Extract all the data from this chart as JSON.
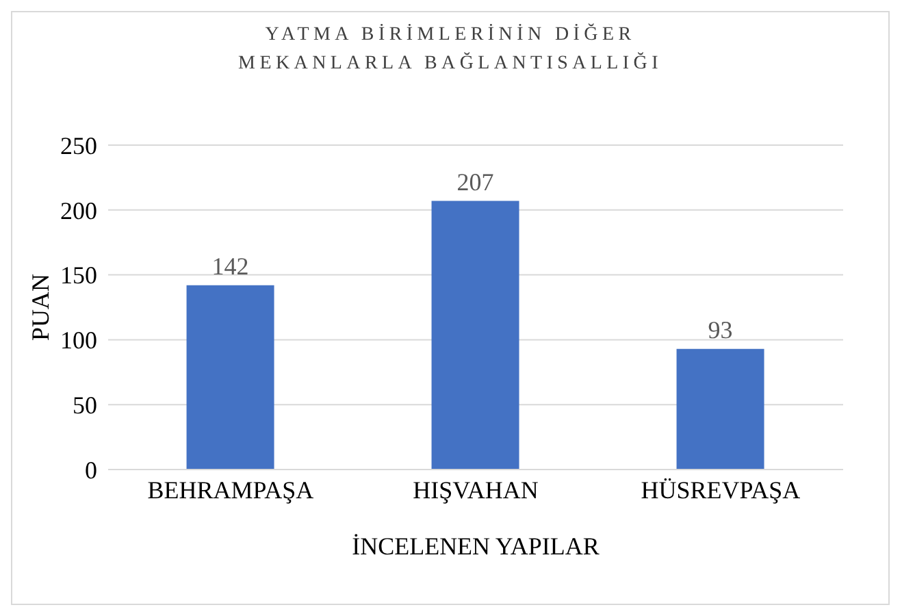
{
  "chart_data": {
    "type": "bar",
    "title": "YATMA BİRİMLERİNİN DİĞER MEKANLARLA BAĞLANTISALLIĞI",
    "xlabel": "İNCELENEN YAPILAR",
    "ylabel": "PUAN",
    "categories": [
      "BEHRAMPAŞA",
      "HIŞVAHAN",
      "HÜSREVPAŞA"
    ],
    "values": [
      142,
      207,
      93
    ],
    "color": "#4472c4",
    "ylim": [
      0,
      250
    ],
    "yticks": [
      0,
      50,
      100,
      150,
      200,
      250
    ],
    "grid": "y",
    "data_labels": true
  }
}
